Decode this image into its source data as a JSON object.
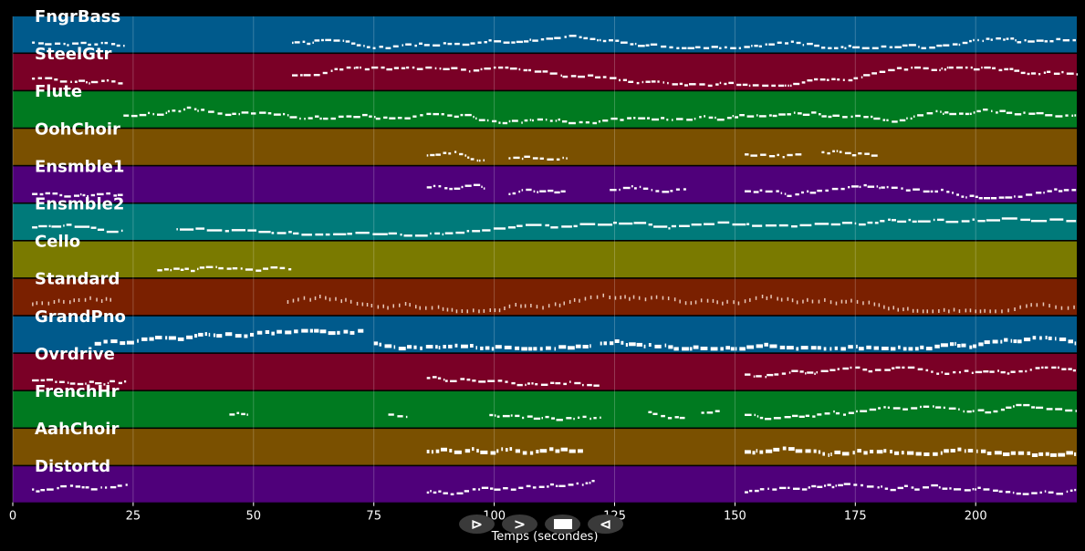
{
  "chart_data": {
    "type": "piano-roll",
    "xlabel": "Temps (secondes)",
    "xlim": [
      0,
      221
    ],
    "xticks": [
      0,
      25,
      50,
      75,
      100,
      125,
      150,
      175,
      200
    ],
    "grid": true,
    "tracks": [
      {
        "name": "FngrBass",
        "color": "#005a8c",
        "segments": [
          [
            4,
            23
          ],
          [
            58,
            221
          ]
        ]
      },
      {
        "name": "SteelGtr",
        "color": "#7a0026",
        "segments": [
          [
            4,
            23
          ],
          [
            58,
            221
          ]
        ]
      },
      {
        "name": "Flute",
        "color": "#007a20",
        "segments": [
          [
            23,
            221
          ]
        ]
      },
      {
        "name": "OohChoir",
        "color": "#7a5000",
        "segments": [
          [
            86,
            98
          ],
          [
            103,
            115
          ],
          [
            152,
            164
          ],
          [
            168,
            180
          ]
        ]
      },
      {
        "name": "Ensmble1",
        "color": "#4f007a",
        "segments": [
          [
            4,
            23
          ],
          [
            86,
            98
          ],
          [
            103,
            115
          ],
          [
            124,
            140
          ],
          [
            152,
            221
          ]
        ]
      },
      {
        "name": "Ensmble2",
        "color": "#007a7a",
        "segments": [
          [
            4,
            23
          ],
          [
            34,
            221
          ]
        ]
      },
      {
        "name": "Cello",
        "color": "#7a7a00",
        "segments": [
          [
            30,
            58
          ]
        ]
      },
      {
        "name": "Standard",
        "color": "#7a2000",
        "segments": [
          [
            4,
            21
          ],
          [
            57,
            221
          ]
        ]
      },
      {
        "name": "GrandPno",
        "color": "#005a8c",
        "segments": [
          [
            17,
            73
          ],
          [
            75,
            120
          ],
          [
            122,
            221
          ]
        ]
      },
      {
        "name": "Ovrdrive",
        "color": "#7a0026",
        "segments": [
          [
            4,
            24
          ],
          [
            86,
            122
          ],
          [
            152,
            221
          ]
        ]
      },
      {
        "name": "FrenchHr",
        "color": "#007a20",
        "segments": [
          [
            45,
            49
          ],
          [
            78,
            82
          ],
          [
            99,
            122
          ],
          [
            132,
            140
          ],
          [
            143,
            147
          ],
          [
            152,
            221
          ]
        ]
      },
      {
        "name": "AahChoir",
        "color": "#7a5000",
        "segments": [
          [
            86,
            119
          ],
          [
            152,
            221
          ]
        ]
      },
      {
        "name": "Distortd",
        "color": "#4f007a",
        "segments": [
          [
            4,
            24
          ],
          [
            86,
            121
          ],
          [
            152,
            221
          ]
        ]
      }
    ]
  },
  "transport": {
    "play_label": "⊳",
    "forward_label": ">",
    "back_label": "⊲"
  }
}
